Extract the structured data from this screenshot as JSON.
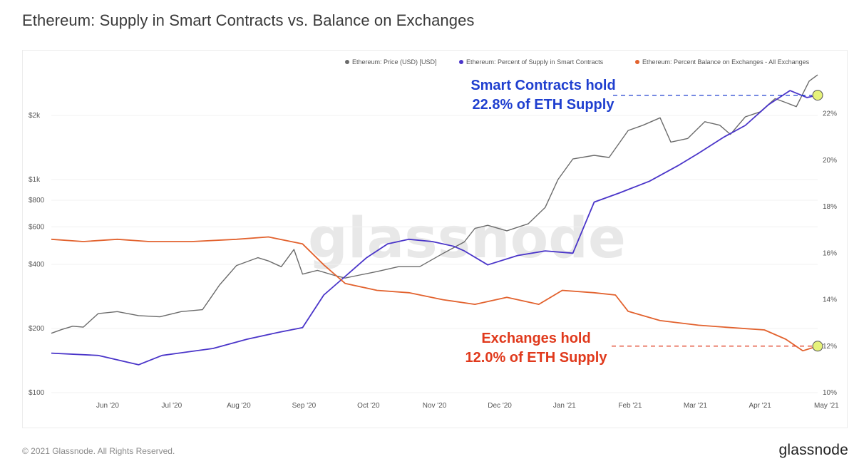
{
  "page": {
    "title": "Ethereum: Supply in Smart Contracts vs. Balance on Exchanges",
    "copyright": "© 2021 Glassnode. All Rights Reserved.",
    "brand": "glassnode",
    "watermark": "glassnode"
  },
  "colors": {
    "price": "#6b6b6b",
    "smart_contracts": "#4a35c9",
    "exchanges": "#e2622e",
    "annot_blue": "#1f3fcf",
    "annot_red": "#e0391c",
    "marker": "#e6f27a"
  },
  "chart_data": {
    "type": "line",
    "legend": [
      {
        "label": "Ethereum: Price (USD) [USD]",
        "color": "#6b6b6b"
      },
      {
        "label": "Ethereum: Percent of Supply in Smart Contracts",
        "color": "#4a35c9"
      },
      {
        "label": "Ethereum: Percent Balance on Exchanges - All Exchanges",
        "color": "#e2622e"
      }
    ],
    "legend_position": "top-right",
    "x_ticks": [
      "Jun '20",
      "Jul '20",
      "Aug '20",
      "Sep '20",
      "Oct '20",
      "Nov '20",
      "Dec '20",
      "Jan '21",
      "Feb '21",
      "Mar '21",
      "Apr '21",
      "May '21"
    ],
    "x_range": [
      "2020-05-10",
      "2021-05-05"
    ],
    "y_left": {
      "scale": "log",
      "range": [
        100,
        3200
      ],
      "ticks": [
        100,
        200,
        400,
        600,
        800,
        1000,
        2000
      ],
      "tick_labels": [
        "$100",
        "$200",
        "$400",
        "$600",
        "$800",
        "$1k",
        "$2k"
      ]
    },
    "y_right": {
      "scale": "linear",
      "range": [
        10,
        23.8
      ],
      "ticks": [
        10,
        12,
        14,
        16,
        18,
        20,
        22
      ],
      "tick_labels": [
        "10%",
        "12%",
        "14%",
        "16%",
        "18%",
        "20%",
        "22%"
      ]
    },
    "series": [
      {
        "name": "Ethereum: Price (USD) [USD]",
        "axis": "left",
        "points": [
          [
            "2020-05-10",
            190
          ],
          [
            "2020-05-15",
            198
          ],
          [
            "2020-05-20",
            205
          ],
          [
            "2020-05-25",
            203
          ],
          [
            "2020-06-01",
            235
          ],
          [
            "2020-06-10",
            240
          ],
          [
            "2020-06-20",
            230
          ],
          [
            "2020-06-30",
            227
          ],
          [
            "2020-07-10",
            240
          ],
          [
            "2020-07-20",
            245
          ],
          [
            "2020-07-24",
            280
          ],
          [
            "2020-07-28",
            320
          ],
          [
            "2020-08-05",
            395
          ],
          [
            "2020-08-15",
            430
          ],
          [
            "2020-08-20",
            415
          ],
          [
            "2020-08-26",
            390
          ],
          [
            "2020-09-01",
            470
          ],
          [
            "2020-09-05",
            360
          ],
          [
            "2020-09-12",
            375
          ],
          [
            "2020-09-20",
            355
          ],
          [
            "2020-09-25",
            345
          ],
          [
            "2020-10-01",
            355
          ],
          [
            "2020-10-10",
            370
          ],
          [
            "2020-10-20",
            390
          ],
          [
            "2020-10-30",
            390
          ],
          [
            "2020-11-10",
            450
          ],
          [
            "2020-11-20",
            510
          ],
          [
            "2020-11-25",
            590
          ],
          [
            "2020-12-01",
            610
          ],
          [
            "2020-12-10",
            575
          ],
          [
            "2020-12-20",
            620
          ],
          [
            "2020-12-28",
            740
          ],
          [
            "2021-01-03",
            1000
          ],
          [
            "2021-01-10",
            1250
          ],
          [
            "2021-01-20",
            1300
          ],
          [
            "2021-01-27",
            1270
          ],
          [
            "2021-02-05",
            1700
          ],
          [
            "2021-02-12",
            1800
          ],
          [
            "2021-02-20",
            1950
          ],
          [
            "2021-02-25",
            1500
          ],
          [
            "2021-03-05",
            1560
          ],
          [
            "2021-03-13",
            1870
          ],
          [
            "2021-03-20",
            1800
          ],
          [
            "2021-03-25",
            1630
          ],
          [
            "2021-04-01",
            1970
          ],
          [
            "2021-04-08",
            2080
          ],
          [
            "2021-04-15",
            2400
          ],
          [
            "2021-04-20",
            2300
          ],
          [
            "2021-04-25",
            2200
          ],
          [
            "2021-05-01",
            2900
          ],
          [
            "2021-05-05",
            3100
          ]
        ]
      },
      {
        "name": "Ethereum: Percent of Supply in Smart Contracts",
        "axis": "right",
        "points": [
          [
            "2020-05-10",
            11.7
          ],
          [
            "2020-06-01",
            11.6
          ],
          [
            "2020-06-20",
            11.2
          ],
          [
            "2020-07-01",
            11.6
          ],
          [
            "2020-07-25",
            11.9
          ],
          [
            "2020-08-10",
            12.3
          ],
          [
            "2020-08-25",
            12.6
          ],
          [
            "2020-09-05",
            12.8
          ],
          [
            "2020-09-15",
            14.2
          ],
          [
            "2020-09-25",
            15.0
          ],
          [
            "2020-10-05",
            15.8
          ],
          [
            "2020-10-15",
            16.4
          ],
          [
            "2020-10-25",
            16.6
          ],
          [
            "2020-11-05",
            16.5
          ],
          [
            "2020-11-15",
            16.3
          ],
          [
            "2020-11-20",
            16.1
          ],
          [
            "2020-12-01",
            15.5
          ],
          [
            "2020-12-15",
            15.9
          ],
          [
            "2020-12-28",
            16.1
          ],
          [
            "2021-01-10",
            16.0
          ],
          [
            "2021-01-20",
            18.2
          ],
          [
            "2021-02-01",
            18.6
          ],
          [
            "2021-02-15",
            19.1
          ],
          [
            "2021-03-01",
            19.8
          ],
          [
            "2021-03-10",
            20.3
          ],
          [
            "2021-03-22",
            21.0
          ],
          [
            "2021-04-01",
            21.5
          ],
          [
            "2021-04-12",
            22.4
          ],
          [
            "2021-04-22",
            23.0
          ],
          [
            "2021-04-30",
            22.7
          ],
          [
            "2021-05-05",
            22.8
          ]
        ]
      },
      {
        "name": "Ethereum: Percent Balance on Exchanges - All Exchanges",
        "axis": "right",
        "points": [
          [
            "2020-05-10",
            16.6
          ],
          [
            "2020-05-25",
            16.5
          ],
          [
            "2020-06-10",
            16.6
          ],
          [
            "2020-06-25",
            16.5
          ],
          [
            "2020-07-15",
            16.5
          ],
          [
            "2020-08-05",
            16.6
          ],
          [
            "2020-08-20",
            16.7
          ],
          [
            "2020-09-05",
            16.4
          ],
          [
            "2020-09-15",
            15.5
          ],
          [
            "2020-09-25",
            14.7
          ],
          [
            "2020-10-10",
            14.4
          ],
          [
            "2020-10-25",
            14.3
          ],
          [
            "2020-11-10",
            14.0
          ],
          [
            "2020-11-25",
            13.8
          ],
          [
            "2020-12-10",
            14.1
          ],
          [
            "2020-12-25",
            13.8
          ],
          [
            "2021-01-05",
            14.4
          ],
          [
            "2021-01-20",
            14.3
          ],
          [
            "2021-01-30",
            14.2
          ],
          [
            "2021-02-05",
            13.5
          ],
          [
            "2021-02-20",
            13.1
          ],
          [
            "2021-03-10",
            12.9
          ],
          [
            "2021-03-25",
            12.8
          ],
          [
            "2021-04-10",
            12.7
          ],
          [
            "2021-04-20",
            12.3
          ],
          [
            "2021-04-28",
            11.8
          ],
          [
            "2021-05-05",
            12.0
          ]
        ]
      }
    ],
    "annotations": [
      {
        "lines": [
          "Smart Contracts hold",
          "22.8% of ETH Supply"
        ],
        "color": "#1f3fcf",
        "marker_value": 22.8
      },
      {
        "lines": [
          "Exchanges hold",
          "12.0% of ETH Supply"
        ],
        "color": "#e0391c",
        "marker_value": 12.0
      }
    ]
  }
}
